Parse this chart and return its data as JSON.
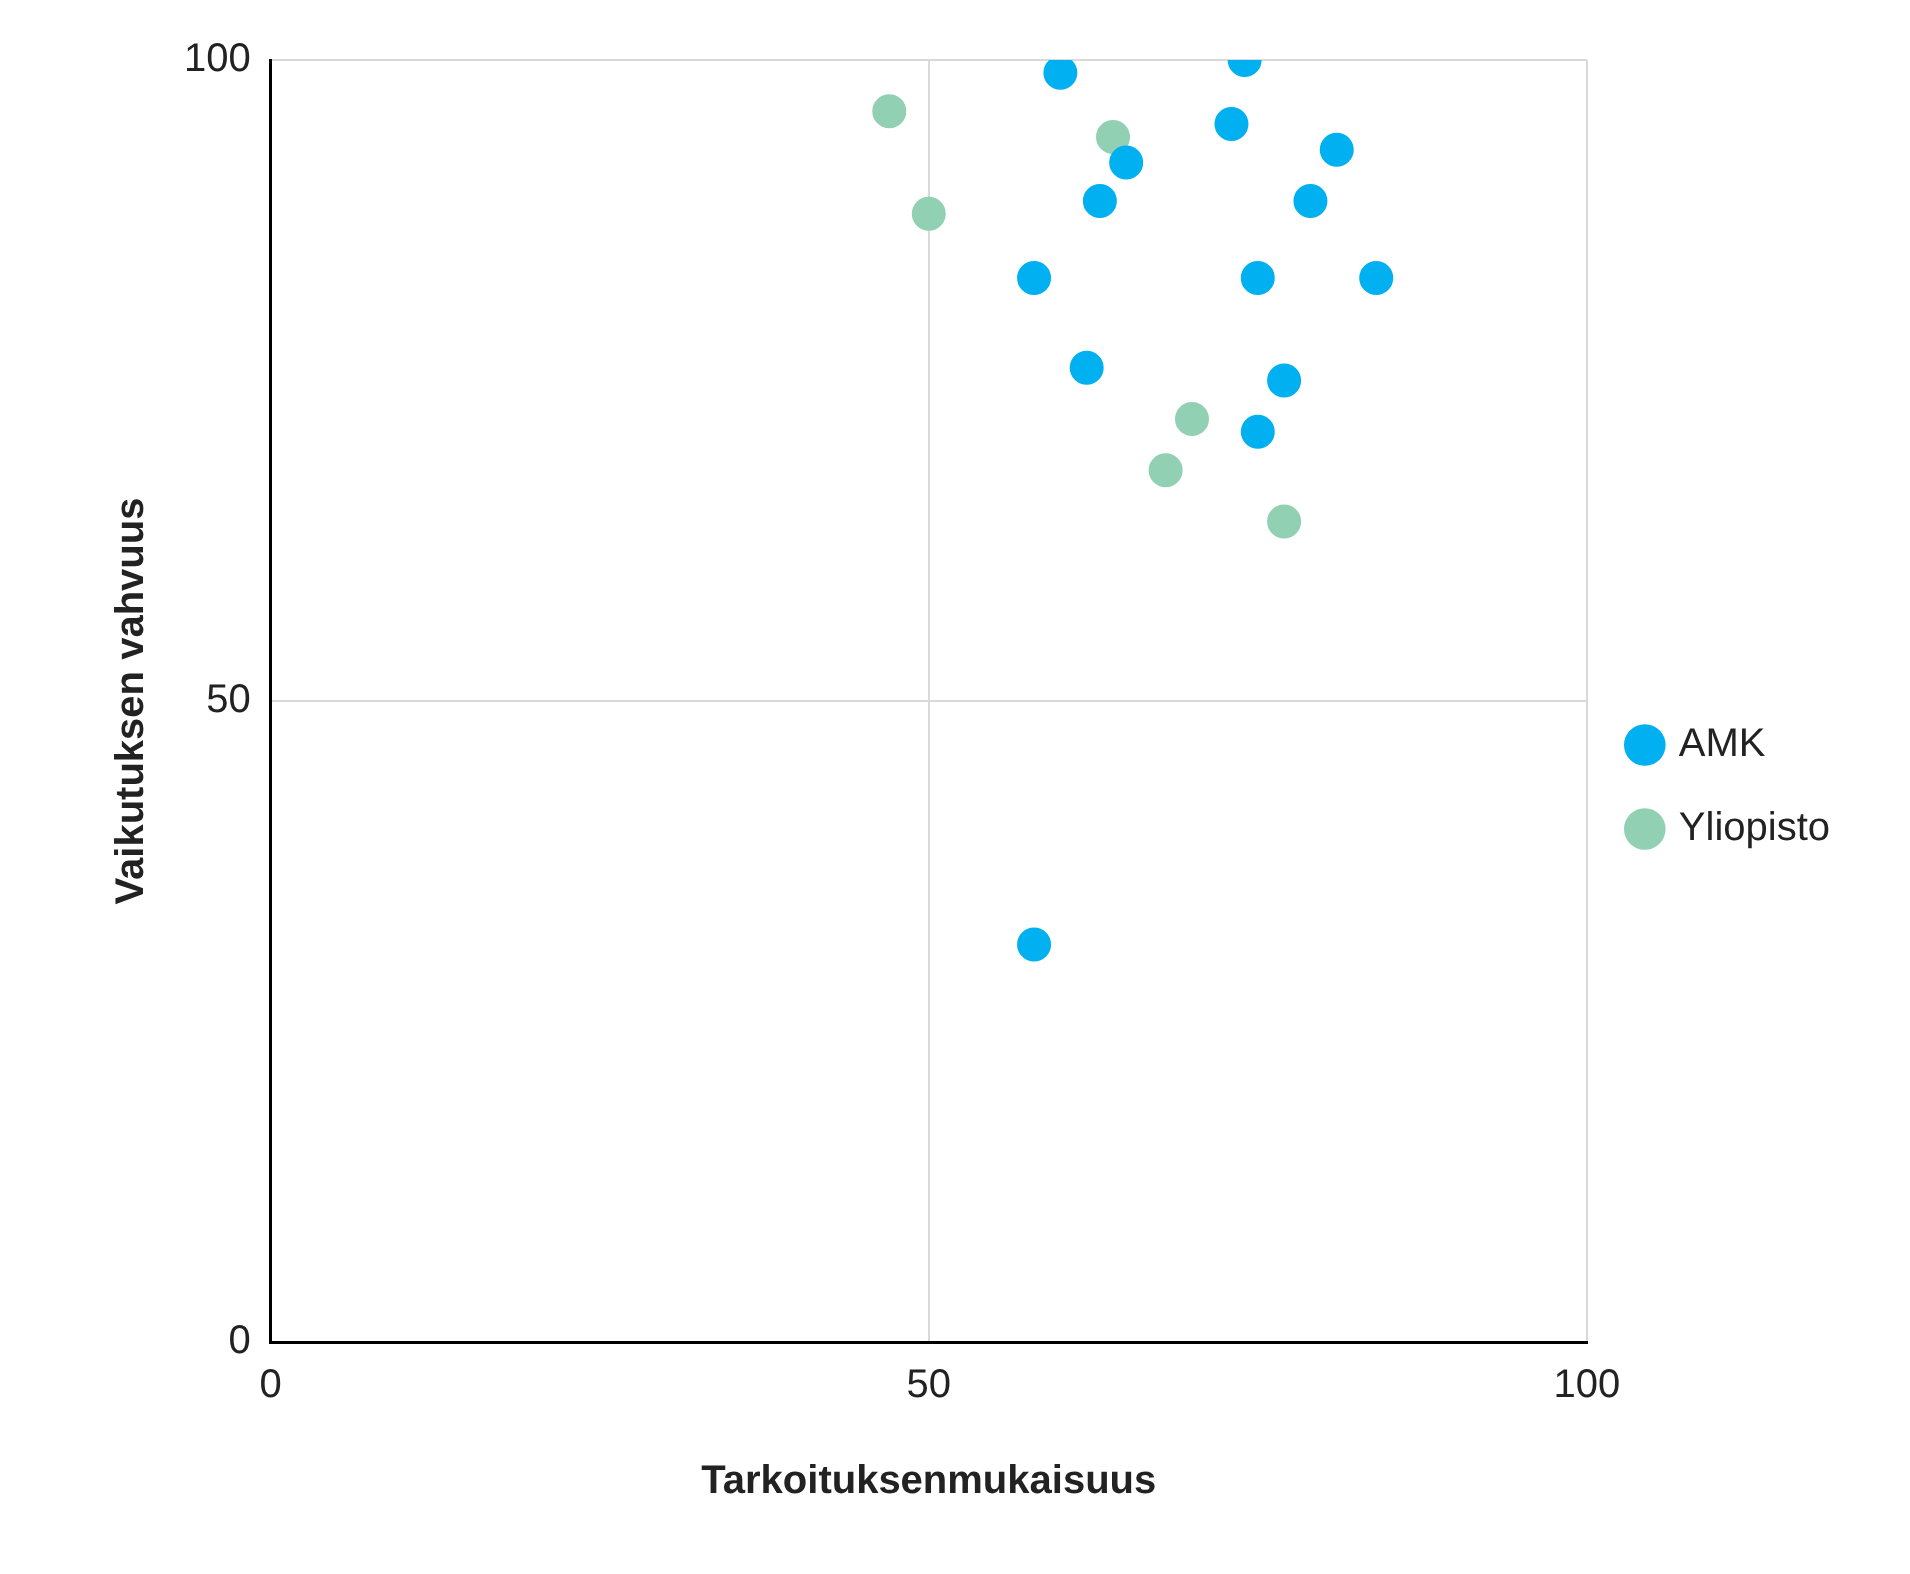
{
  "chart_data": {
    "type": "scatter",
    "xlabel": "Tarkoituksenmukaisuus",
    "ylabel": "Vaikutuksen vahvuus",
    "xlim": [
      0,
      100
    ],
    "xticks": [
      0,
      50,
      100
    ],
    "ylim": [
      0,
      100
    ],
    "yticks": [
      0,
      50,
      100
    ],
    "grid": true,
    "legend": "right",
    "marker": "circle",
    "series": [
      {
        "name": "AMK",
        "color": "#00b0f0",
        "x": [
          60,
          74,
          73,
          81,
          65,
          63,
          79,
          58,
          75,
          84,
          62,
          77,
          75,
          58
        ],
        "values": [
          99,
          100,
          95,
          93,
          92,
          89,
          89,
          83,
          83,
          83,
          76,
          75,
          71,
          31
        ]
      },
      {
        "name": "Yliopisto",
        "color": "#92d0b4",
        "x": [
          47,
          50,
          64,
          70,
          68,
          77
        ],
        "values": [
          96,
          88,
          94,
          72,
          68,
          64
        ]
      }
    ]
  }
}
